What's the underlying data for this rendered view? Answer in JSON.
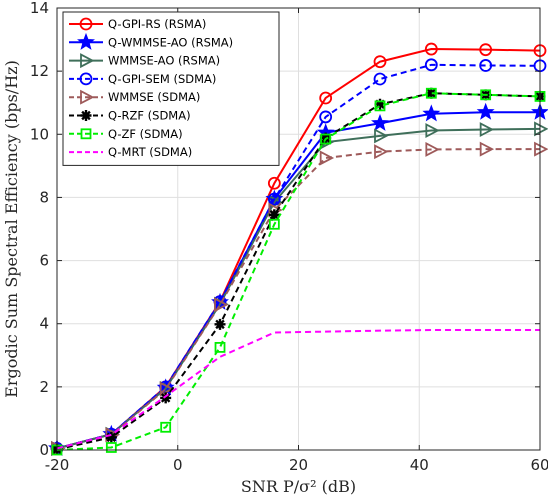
{
  "chart_data": {
    "type": "line",
    "xlabel": "SNR P/σ² (dB)",
    "ylabel": "Ergodic Sum Spectral Efficiency (bps/Hz)",
    "xlim": [
      -20,
      60
    ],
    "ylim": [
      0,
      14
    ],
    "xticks": [
      -20,
      0,
      20,
      40,
      60
    ],
    "yticks": [
      0,
      2,
      4,
      6,
      8,
      10,
      12,
      14
    ],
    "grid": true,
    "legend_position": "top-left",
    "x": [
      -20,
      -11,
      -2,
      7,
      16,
      24.5,
      33.5,
      42,
      51,
      60
    ],
    "series": [
      {
        "name": "Q-GPI-RS (RSMA)",
        "color": "#ff0000",
        "dash": "solid",
        "marker": "circle",
        "values": [
          0.05,
          0.5,
          2.0,
          4.7,
          8.45,
          11.15,
          12.3,
          12.7,
          12.68,
          12.65
        ]
      },
      {
        "name": "Q-WMMSE-AO (RSMA)",
        "color": "#0000ff",
        "dash": "solid",
        "marker": "star",
        "values": [
          0.05,
          0.5,
          1.97,
          4.68,
          7.95,
          10.05,
          10.35,
          10.65,
          10.7,
          10.7
        ]
      },
      {
        "name": "WMMSE-AO (RSMA)",
        "color": "#3f6f5a",
        "dash": "solid",
        "marker": "triangle-right",
        "values": [
          0.05,
          0.5,
          1.95,
          4.62,
          7.85,
          9.75,
          9.95,
          10.12,
          10.15,
          10.17
        ]
      },
      {
        "name": "Q-GPI-SEM (SDMA)",
        "color": "#0000ff",
        "dash": "dashed",
        "marker": "circle",
        "values": [
          0.05,
          0.5,
          2.0,
          4.7,
          7.95,
          10.55,
          11.75,
          12.2,
          12.18,
          12.17
        ]
      },
      {
        "name": "WMMSE (SDMA)",
        "color": "#9e5a5a",
        "dash": "dashed",
        "marker": "triangle-right",
        "values": [
          0.05,
          0.48,
          1.93,
          4.6,
          7.6,
          9.25,
          9.45,
          9.52,
          9.53,
          9.53
        ]
      },
      {
        "name": "Q-RZF (SDMA)",
        "color": "#000000",
        "dash": "dashed",
        "marker": "asterisk",
        "values": [
          0.02,
          0.4,
          1.65,
          3.98,
          7.45,
          9.88,
          10.95,
          11.3,
          11.25,
          11.2
        ]
      },
      {
        "name": "Q-ZF (SDMA)",
        "color": "#00ee00",
        "dash": "dashed",
        "marker": "square",
        "values": [
          0.0,
          0.08,
          0.72,
          3.25,
          7.15,
          9.85,
          10.9,
          11.3,
          11.25,
          11.2
        ]
      },
      {
        "name": "Q-MRT (SDMA)",
        "color": "#ff00ff",
        "dash": "dashed",
        "marker": "none",
        "values": [
          0.05,
          0.48,
          1.7,
          2.95,
          3.72,
          3.75,
          3.78,
          3.8,
          3.8,
          3.8
        ]
      }
    ]
  }
}
